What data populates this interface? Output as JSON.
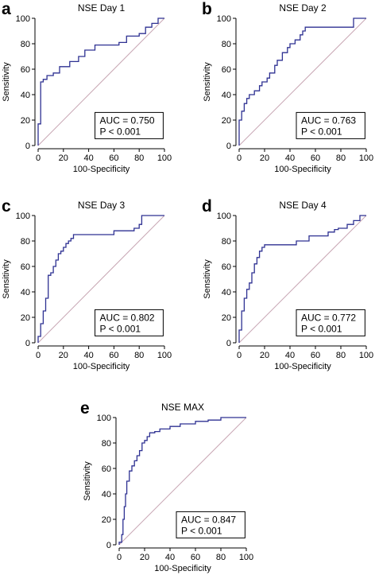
{
  "chart_data": [
    {
      "type": "line",
      "panel": "a",
      "title": "NSE Day 1",
      "xlabel": "100-Specificity",
      "ylabel": "Sensitivity",
      "xlim": [
        0,
        100
      ],
      "ylim": [
        0,
        100
      ],
      "xticks": [
        "0",
        "20",
        "40",
        "60",
        "80",
        "100"
      ],
      "yticks": [
        "0",
        "20",
        "40",
        "60",
        "80",
        "100"
      ],
      "auc_text": "AUC = 0.750",
      "p_text": "P < 0.001",
      "colors": {
        "roc": "#2e3192",
        "diagonal": "#c8a7b4"
      },
      "series": [
        {
          "x": [
            0,
            0,
            2,
            2,
            4,
            4,
            7,
            7,
            12,
            12,
            17,
            17,
            22,
            22,
            25,
            25,
            32,
            32,
            37,
            37,
            40,
            40,
            45,
            45,
            52,
            52,
            64,
            64,
            70,
            70,
            80,
            80,
            85,
            85,
            90,
            90,
            95,
            95,
            100
          ],
          "y": [
            0,
            17,
            17,
            50,
            50,
            52,
            52,
            55,
            55,
            57,
            57,
            62,
            62,
            62,
            62,
            66,
            66,
            70,
            70,
            75,
            75,
            75,
            75,
            79,
            79,
            79,
            79,
            81,
            81,
            86,
            86,
            88,
            88,
            93,
            93,
            96,
            96,
            100,
            100
          ]
        }
      ]
    },
    {
      "type": "line",
      "panel": "b",
      "title": "NSE Day 2",
      "xlabel": "100-Specificity",
      "ylabel": "Sensitivity",
      "xlim": [
        0,
        100
      ],
      "ylim": [
        0,
        100
      ],
      "xticks": [
        "0",
        "20",
        "40",
        "60",
        "80",
        "100"
      ],
      "yticks": [
        "0",
        "20",
        "40",
        "60",
        "80",
        "100"
      ],
      "auc_text": "AUC = 0.763",
      "p_text": "P < 0.001",
      "colors": {
        "roc": "#2e3192",
        "diagonal": "#c8a7b4"
      },
      "series": [
        {
          "x": [
            0,
            0,
            2,
            2,
            4,
            4,
            6,
            6,
            8,
            8,
            12,
            12,
            16,
            16,
            18,
            18,
            22,
            22,
            24,
            24,
            28,
            28,
            30,
            30,
            34,
            34,
            38,
            38,
            40,
            40,
            44,
            44,
            48,
            48,
            50,
            50,
            52,
            52,
            90,
            90,
            100
          ],
          "y": [
            0,
            20,
            20,
            27,
            27,
            33,
            33,
            37,
            37,
            40,
            40,
            43,
            43,
            47,
            47,
            50,
            50,
            53,
            53,
            57,
            57,
            63,
            63,
            67,
            67,
            73,
            73,
            77,
            77,
            80,
            80,
            83,
            83,
            87,
            87,
            90,
            90,
            93,
            93,
            100,
            100
          ]
        }
      ]
    },
    {
      "type": "line",
      "panel": "c",
      "title": "NSE Day 3",
      "xlabel": "100-Specificity",
      "ylabel": "Sensitivity",
      "xlim": [
        0,
        100
      ],
      "ylim": [
        0,
        100
      ],
      "xticks": [
        "0",
        "20",
        "40",
        "60",
        "80",
        "100"
      ],
      "yticks": [
        "0",
        "20",
        "40",
        "60",
        "80",
        "100"
      ],
      "auc_text": "AUC = 0.802",
      "p_text": "P < 0.001",
      "colors": {
        "roc": "#2e3192",
        "diagonal": "#c8a7b4"
      },
      "series": [
        {
          "x": [
            0,
            0,
            2,
            2,
            4,
            4,
            6,
            6,
            8,
            8,
            10,
            10,
            12,
            12,
            14,
            14,
            16,
            16,
            18,
            18,
            20,
            20,
            22,
            22,
            24,
            24,
            26,
            26,
            28,
            28,
            60,
            60,
            76,
            76,
            80,
            80,
            82,
            82,
            100
          ],
          "y": [
            0,
            5,
            5,
            15,
            15,
            25,
            25,
            35,
            35,
            53,
            53,
            55,
            55,
            60,
            60,
            65,
            65,
            70,
            70,
            72,
            72,
            75,
            75,
            78,
            78,
            80,
            80,
            82,
            82,
            85,
            85,
            88,
            88,
            90,
            90,
            93,
            93,
            100,
            100
          ]
        }
      ]
    },
    {
      "type": "line",
      "panel": "d",
      "title": "NSE Day 4",
      "xlabel": "100-Specificity",
      "ylabel": "Sensitivity",
      "xlim": [
        0,
        100
      ],
      "ylim": [
        0,
        100
      ],
      "xticks": [
        "0",
        "20",
        "40",
        "60",
        "80",
        "100"
      ],
      "yticks": [
        "0",
        "20",
        "40",
        "60",
        "80",
        "100"
      ],
      "auc_text": "AUC = 0.772",
      "p_text": "P < 0.001",
      "colors": {
        "roc": "#2e3192",
        "diagonal": "#c8a7b4"
      },
      "series": [
        {
          "x": [
            0,
            0,
            2,
            2,
            4,
            4,
            6,
            6,
            8,
            8,
            10,
            10,
            12,
            12,
            14,
            14,
            16,
            16,
            18,
            18,
            20,
            20,
            45,
            45,
            55,
            55,
            70,
            70,
            75,
            75,
            78,
            78,
            85,
            85,
            90,
            90,
            95,
            95,
            100
          ],
          "y": [
            0,
            10,
            10,
            25,
            25,
            35,
            35,
            42,
            42,
            47,
            47,
            55,
            55,
            62,
            62,
            67,
            67,
            72,
            72,
            75,
            75,
            77,
            77,
            80,
            80,
            84,
            84,
            87,
            87,
            89,
            89,
            90,
            90,
            93,
            93,
            96,
            96,
            100,
            100
          ]
        }
      ]
    },
    {
      "type": "line",
      "panel": "e",
      "title": "NSE MAX",
      "xlabel": "100-Specificity",
      "ylabel": "Sensitivity",
      "xlim": [
        0,
        100
      ],
      "ylim": [
        0,
        100
      ],
      "xticks": [
        "0",
        "20",
        "40",
        "60",
        "80",
        "100"
      ],
      "yticks": [
        "0",
        "20",
        "40",
        "60",
        "80",
        "100"
      ],
      "auc_text": "AUC = 0.847",
      "p_text": "P < 0.001",
      "colors": {
        "roc": "#2e3192",
        "diagonal": "#c8a7b4"
      },
      "series": [
        {
          "x": [
            0,
            0,
            2,
            2,
            3,
            3,
            4,
            4,
            5,
            5,
            6,
            6,
            8,
            8,
            10,
            10,
            12,
            12,
            14,
            14,
            16,
            16,
            18,
            18,
            20,
            20,
            22,
            22,
            24,
            24,
            28,
            28,
            32,
            32,
            40,
            40,
            48,
            48,
            60,
            60,
            70,
            70,
            80,
            80,
            100
          ],
          "y": [
            0,
            2,
            2,
            8,
            8,
            20,
            20,
            30,
            30,
            40,
            40,
            50,
            50,
            58,
            58,
            62,
            62,
            66,
            66,
            70,
            70,
            74,
            74,
            80,
            80,
            82,
            82,
            85,
            85,
            88,
            88,
            89,
            89,
            91,
            91,
            93,
            93,
            95,
            95,
            97,
            97,
            98,
            98,
            100,
            100
          ]
        }
      ]
    }
  ]
}
